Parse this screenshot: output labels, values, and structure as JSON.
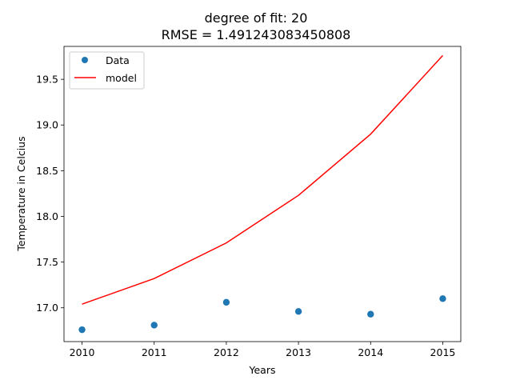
{
  "chart_data": {
    "type": "line",
    "title_lines": [
      "degree of fit: 20",
      "RMSE = 1.491243083450808"
    ],
    "xlabel": "Years",
    "ylabel": "Temperature in Celcius",
    "xlim": [
      2009.75,
      2015.25
    ],
    "ylim": [
      16.63,
      19.86
    ],
    "x_ticks": [
      2010,
      2011,
      2012,
      2013,
      2014,
      2015
    ],
    "x_tick_labels": [
      "2010",
      "2011",
      "2012",
      "2013",
      "2014",
      "2015"
    ],
    "y_ticks": [
      17.0,
      17.5,
      18.0,
      18.5,
      19.0,
      19.5
    ],
    "y_tick_labels": [
      "17.0",
      "17.5",
      "18.0",
      "18.5",
      "19.0",
      "19.5"
    ],
    "grid": false,
    "legend_position": "upper-left",
    "series": [
      {
        "name": "Data",
        "kind": "scatter",
        "color": "#1f77b4",
        "x": [
          2010,
          2011,
          2012,
          2013,
          2014,
          2015
        ],
        "y": [
          16.76,
          16.81,
          17.06,
          16.96,
          16.93,
          17.1
        ]
      },
      {
        "name": "model",
        "kind": "line",
        "color": "#ff0000",
        "x": [
          2010,
          2011,
          2012,
          2013,
          2014,
          2015
        ],
        "y": [
          17.04,
          17.32,
          17.71,
          18.23,
          18.9,
          19.76
        ]
      }
    ]
  }
}
